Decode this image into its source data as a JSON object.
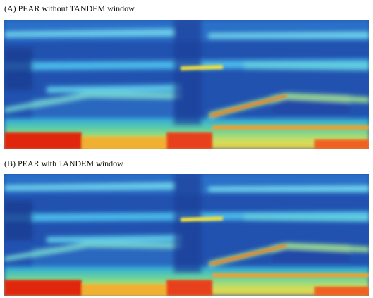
{
  "panels": [
    {
      "title": "(A) PEAR without TANDEM window"
    },
    {
      "title": "(B) PEAR with TANDEM window"
    }
  ]
}
